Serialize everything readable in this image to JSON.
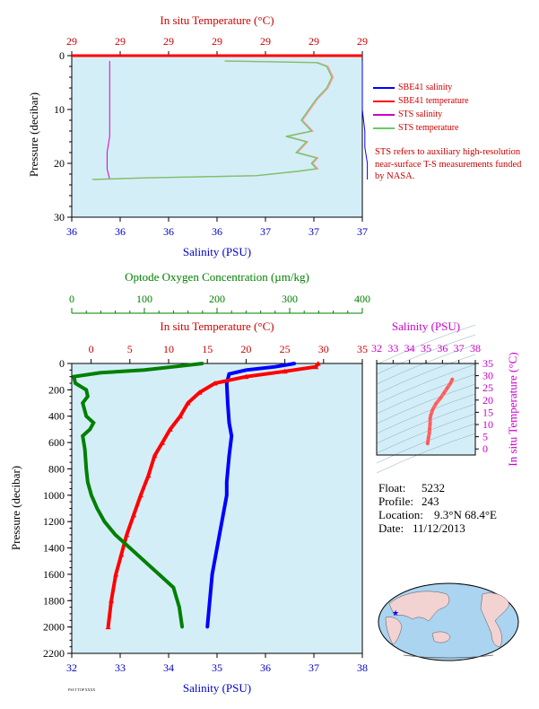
{
  "colors": {
    "plot_bg": "#d4eef8",
    "salinity": "#0000ff",
    "temperature": "#ff0000",
    "oxygen": "#008000",
    "sts_salinity": "#cc00cc",
    "sts_temperature": "#66cc66",
    "sts_temperature_alt": "#ff9999",
    "magenta_axis": "#cc00cc",
    "ts_line": "#ff6666"
  },
  "legend": {
    "items": [
      {
        "label": "SBE41 salinity",
        "color": "#0000ff"
      },
      {
        "label": "SBE41 temperature",
        "color": "#ff0000"
      },
      {
        "label": "STS salinity",
        "color": "#cc00cc"
      },
      {
        "label": "STS temperature",
        "color": "#66cc66"
      }
    ],
    "note": "STS refers to auxiliary high-resolution near-surface T-S measurements funded by NASA."
  },
  "info": {
    "float_label": "Float:",
    "float_value": "5232",
    "profile_label": "Profile:",
    "profile_value": "243",
    "location_label": "Location:",
    "location_value": "9.3°N  68.4°E",
    "date_label": "Date:",
    "date_value": "11/12/2013"
  },
  "footer_tag": "FSI-T TOP XXXX",
  "chart_data": [
    {
      "id": "near-surface",
      "type": "line",
      "title": "",
      "top_xlabel": "In situ Temperature (°C)",
      "top_ticks": [
        "29",
        "29",
        "29",
        "29",
        "29",
        "29",
        "29"
      ],
      "xlabel": "Salinity (PSU)",
      "bottom_ticks": [
        "36",
        "36",
        "36",
        "36",
        "37",
        "37",
        "37"
      ],
      "ylabel": "Pressure (decibar)",
      "yticks": [
        "0",
        "10",
        "20",
        "30"
      ],
      "ylim": [
        0,
        30
      ],
      "grid": false,
      "legend_position": "right",
      "series": [
        {
          "name": "SBE41 salinity",
          "axis": "salinity",
          "x": [
            37.0,
            37.0,
            37.0,
            37.01,
            37.01,
            37.02,
            37.02,
            37.02
          ],
          "y": [
            1,
            5,
            10,
            14,
            17,
            20,
            22,
            23
          ]
        },
        {
          "name": "SBE41 temperature",
          "axis": "temperature",
          "x": [
            29.3,
            29.3
          ],
          "y": [
            0,
            0
          ]
        },
        {
          "name": "STS salinity",
          "axis": "salinity",
          "x": [
            36.0,
            36.0,
            36.0,
            36.0,
            36.0,
            36.0,
            35.99,
            35.99,
            36.0
          ],
          "y": [
            1,
            3,
            6,
            9,
            12,
            15,
            18,
            21,
            23
          ]
        },
        {
          "name": "STS temperature",
          "axis": "temperature",
          "x": [
            28.0,
            28.9,
            29.0,
            29.05,
            29.0,
            28.9,
            28.75,
            28.85,
            28.6,
            28.8,
            28.7,
            28.9,
            28.85,
            28.9,
            28.7,
            28.3,
            27.2,
            26.7
          ],
          "y": [
            1,
            1.3,
            2,
            4,
            6,
            8,
            12,
            14,
            15,
            16,
            18,
            19,
            20,
            21,
            21.5,
            22.3,
            22.7,
            23
          ]
        }
      ]
    },
    {
      "id": "full-profile",
      "type": "line",
      "title": "",
      "oxygen_xlabel": "Optode Oxygen Concentration (µm/kg)",
      "oxygen_ticks": [
        "0",
        "100",
        "200",
        "300",
        "400"
      ],
      "oxygen_xlim": [
        0,
        400
      ],
      "temp_xlabel": "In situ Temperature (°C)",
      "temp_ticks": [
        "0",
        "5",
        "10",
        "15",
        "20",
        "25",
        "30",
        "35"
      ],
      "temp_xlim": [
        -2.5,
        35
      ],
      "xlabel": "Salinity (PSU)",
      "sal_ticks": [
        "32",
        "33",
        "34",
        "35",
        "36",
        "37",
        "38"
      ],
      "sal_xlim": [
        32,
        38
      ],
      "ylabel": "Pressure (decibar)",
      "yticks": [
        "0",
        "200",
        "400",
        "600",
        "800",
        "1000",
        "1200",
        "1400",
        "1600",
        "1800",
        "2000",
        "2200"
      ],
      "ylim": [
        0,
        2200
      ],
      "grid": false,
      "series": [
        {
          "name": "Salinity",
          "axis": "salinity",
          "x": [
            36.6,
            36.2,
            35.6,
            35.25,
            35.2,
            35.22,
            35.25,
            35.3,
            35.25,
            35.2,
            35.2,
            35.15,
            35.1,
            35.05,
            35.0,
            34.95,
            34.9,
            34.85,
            34.8
          ],
          "y": [
            0,
            25,
            50,
            80,
            150,
            300,
            450,
            550,
            700,
            900,
            1000,
            1100,
            1200,
            1300,
            1400,
            1500,
            1600,
            1800,
            2000
          ]
        },
        {
          "name": "Temperature",
          "axis": "temperature",
          "x": [
            29.3,
            29.0,
            25.0,
            20.0,
            16.0,
            14.0,
            12.5,
            11.5,
            10.2,
            9.2,
            8.2,
            7.4,
            6.4,
            5.5,
            4.6,
            3.9,
            3.2,
            2.6,
            2.2
          ],
          "y": [
            0,
            25,
            60,
            100,
            150,
            220,
            300,
            400,
            500,
            600,
            700,
            850,
            1000,
            1150,
            1300,
            1450,
            1600,
            1800,
            2000
          ]
        },
        {
          "name": "Oxygen",
          "axis": "oxygen",
          "x": [
            180,
            140,
            100,
            40,
            3,
            5,
            20,
            22,
            15,
            20,
            30,
            25,
            15,
            18,
            20,
            22,
            27,
            35,
            45,
            60,
            80,
            100,
            120,
            140,
            148,
            152
          ],
          "y": [
            0,
            25,
            50,
            70,
            100,
            150,
            200,
            250,
            300,
            400,
            450,
            500,
            550,
            650,
            800,
            900,
            1000,
            1100,
            1200,
            1300,
            1400,
            1500,
            1600,
            1700,
            1850,
            2000
          ]
        }
      ]
    },
    {
      "id": "ts-diagram",
      "type": "scatter",
      "title": "",
      "xlabel": "Salinity (PSU)",
      "xticks": [
        "32",
        "33",
        "34",
        "35",
        "36",
        "37",
        "38"
      ],
      "xlim": [
        32,
        38
      ],
      "ylabel": "In situ Temperature (°C)",
      "yticks": [
        "0",
        "5",
        "10",
        "15",
        "20",
        "25",
        "30",
        "35"
      ],
      "ylim": [
        -2.5,
        35
      ],
      "series": [
        {
          "name": "T-S",
          "x": [
            35.1,
            35.12,
            35.15,
            35.2,
            35.22,
            35.25,
            35.25,
            35.3,
            35.4,
            35.6,
            35.9,
            36.1,
            36.3,
            36.5,
            36.6
          ],
          "y": [
            2.2,
            3.2,
            4.6,
            6.4,
            8.2,
            10.2,
            12.5,
            14.0,
            16.0,
            18.5,
            21.0,
            23.0,
            25.0,
            27.0,
            28.5
          ]
        }
      ]
    }
  ]
}
